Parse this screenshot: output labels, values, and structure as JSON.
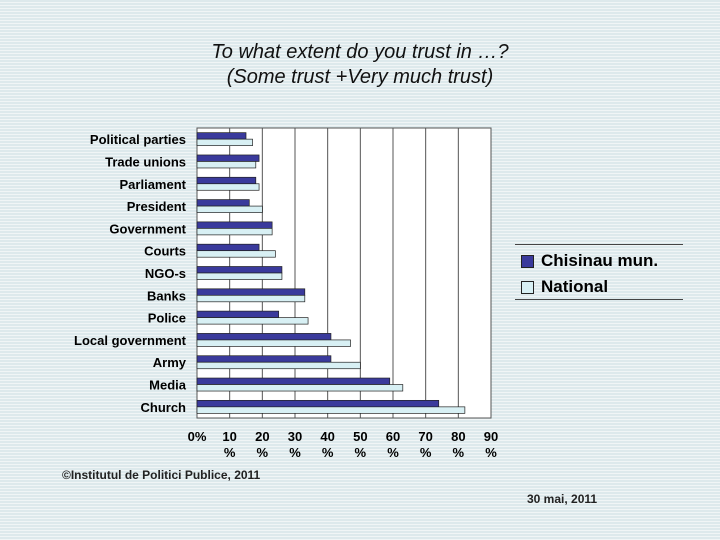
{
  "chart_data": {
    "type": "bar",
    "orientation": "horizontal",
    "title": "To what extent do you trust in …?",
    "subtitle": "(Some trust +Very much trust)",
    "categories": [
      "Political parties",
      "Trade unions",
      "Parliament",
      "President",
      "Government",
      "Courts",
      "NGO-s",
      "Banks",
      "Police",
      "Local government",
      "Army",
      "Media",
      "Church"
    ],
    "series": [
      {
        "name": "Chisinau mun.",
        "color": "#3a3a9c",
        "values": [
          15,
          19,
          18,
          16,
          23,
          19,
          26,
          33,
          25,
          41,
          41,
          59,
          74
        ]
      },
      {
        "name": "National",
        "color": "#d8f0f4",
        "values": [
          17,
          18,
          19,
          20,
          23,
          24,
          26,
          33,
          34,
          47,
          50,
          63,
          82
        ]
      }
    ],
    "xlim": [
      0,
      90
    ],
    "xticks": [
      "0%",
      "10 %",
      "20 %",
      "30 %",
      "40 %",
      "50 %",
      "60 %",
      "70 %",
      "80 %",
      "90 %"
    ],
    "grid": true,
    "legend_position": "right"
  },
  "footer": {
    "copyright": "©Institutul de Politici Publice, 2011",
    "date": "30 mai, 2011"
  }
}
